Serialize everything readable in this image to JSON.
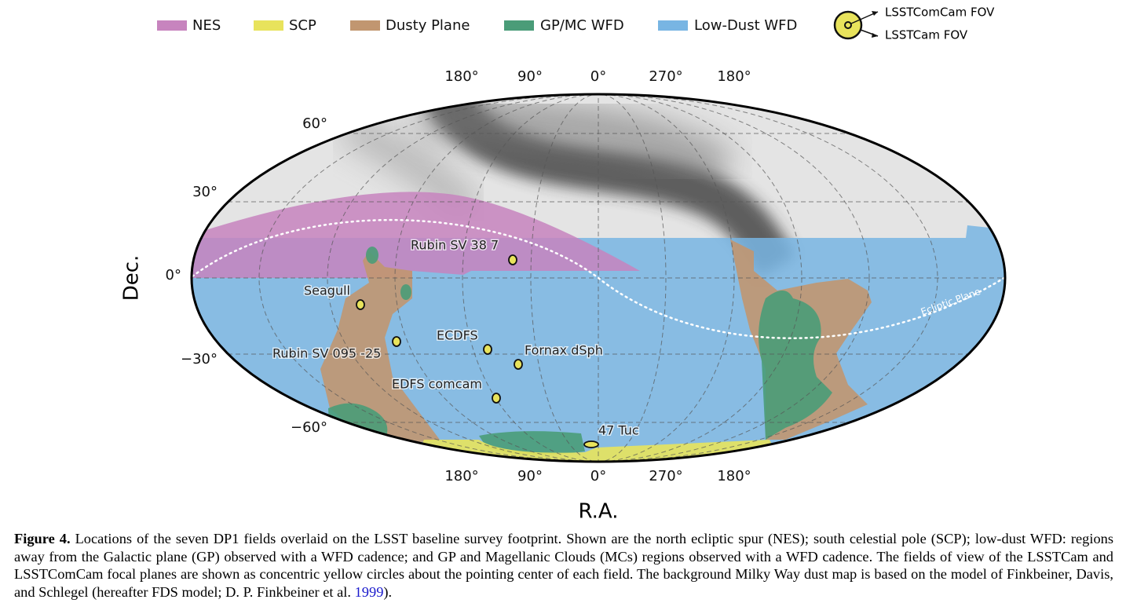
{
  "legend": {
    "items": [
      "NES",
      "SCP",
      "Dusty Plane",
      "GP/MC WFD",
      "Low-Dust WFD"
    ],
    "fov": [
      "LSSTComCam FOV",
      "LSSTCam FOV"
    ]
  },
  "map": {
    "ra_ticks_top": [
      "180°",
      "90°",
      "0°",
      "270°",
      "180°"
    ],
    "ra_ticks_bottom": [
      "180°",
      "90°",
      "0°",
      "270°",
      "180°"
    ],
    "dec_ticks": [
      "60°",
      "30°",
      "0°",
      "−30°",
      "−60°"
    ],
    "xlabel": "R.A.",
    "ylabel": "Dec.",
    "ecliptic_label": "Ecliptic Plane",
    "fields": [
      "Rubin SV 38 7",
      "Seagull",
      "Rubin SV 095 -25",
      "ECDFS",
      "Fornax dSph",
      "EDFS comcam",
      "47 Tuc"
    ]
  },
  "caption": {
    "label": "Figure 4.",
    "text": " Locations of the seven DP1 fields overlaid on the LSST baseline survey footprint. Shown are the north ecliptic spur (NES); south celestial pole (SCP); low-dust WFD: regions away from the Galactic plane (GP) observed with a WFD cadence; and GP and Magellanic Clouds (MCs) regions observed with a WFD cadence. The fields of view of the LSSTCam and LSSTComCam focal planes are shown as concentric yellow circles about the pointing center of each field. The background Milky Way dust map is based on the model of Finkbeiner, Davis, and Schlegel (hereafter FDS model; D. P. Finkbeiner et al. ",
    "citation": "1999",
    "end": ")."
  }
}
